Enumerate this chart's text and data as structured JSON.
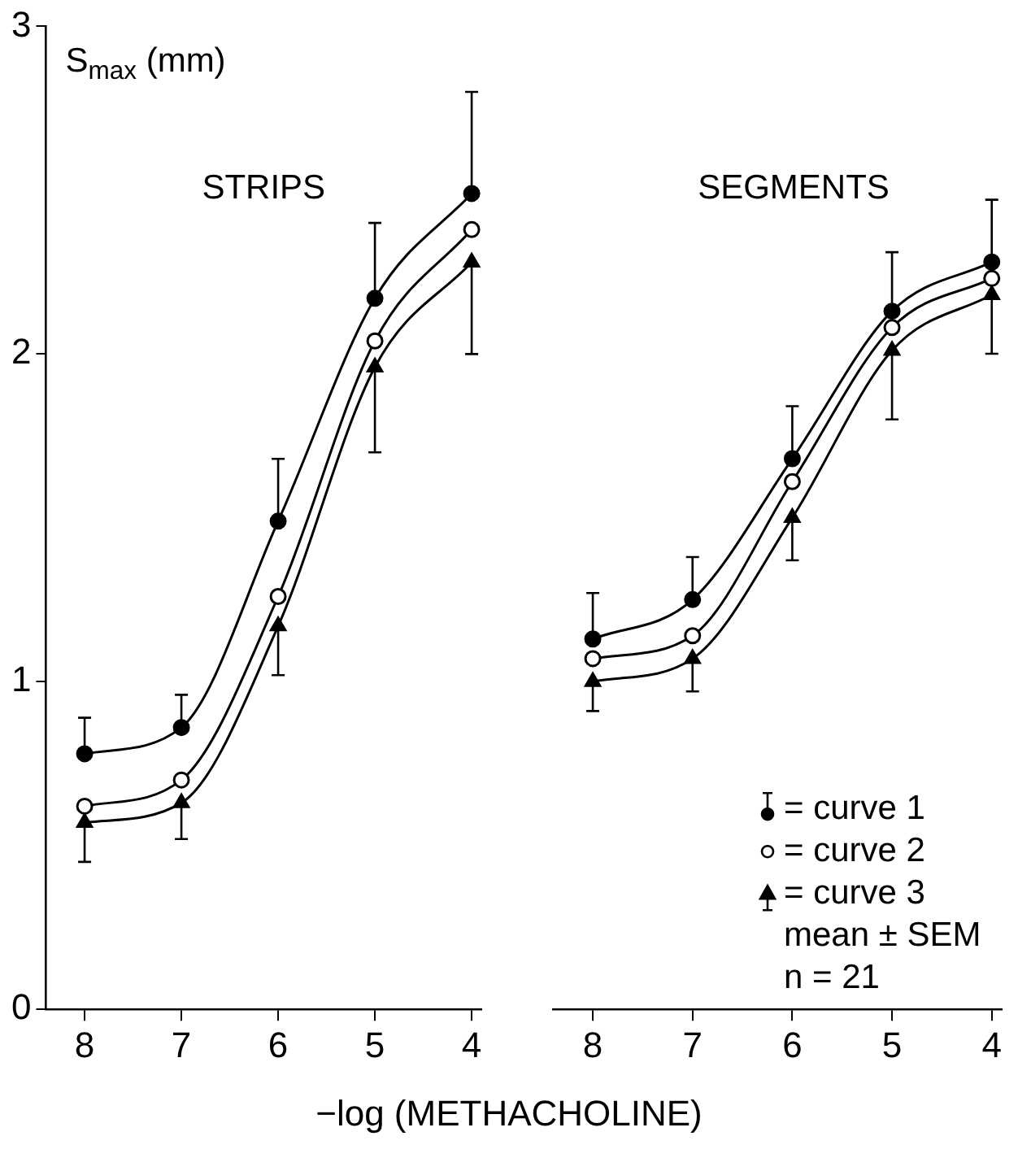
{
  "chart_data": [
    {
      "type": "line",
      "title": "STRIPS",
      "ylabel": "S$_{max}$ (mm)",
      "xlabel": "−log (METHACHOLINE)",
      "xlim": [
        8.4,
        3.9
      ],
      "xticks": [
        8,
        7,
        6,
        5,
        4
      ],
      "ylim": [
        0,
        3
      ],
      "yticks": [
        0,
        1,
        2,
        3
      ],
      "grid": false,
      "line_style": "solid",
      "series": [
        {
          "color": "#000000",
          "marker": "circle",
          "x": [
            8,
            7,
            6,
            5,
            4
          ],
          "values": [
            0.78,
            0.86,
            1.49,
            2.17,
            2.49
          ],
          "errors": [
            [
              0.78,
              0.89
            ],
            [
              0.86,
              0.96
            ],
            [
              1.49,
              1.68
            ],
            [
              2.17,
              2.4
            ],
            [
              2.49,
              2.8
            ]
          ]
        },
        {
          "color": "#000000",
          "marker": "circle",
          "colors": [
            "#ffffff",
            "#ffffff",
            "#ffffff",
            "#ffffff",
            "#ffffff"
          ],
          "x": [
            8,
            7,
            6,
            5,
            4
          ],
          "values": [
            0.62,
            0.7,
            1.26,
            2.04,
            2.38
          ]
        },
        {
          "color": "#000000",
          "marker": "triangle",
          "x": [
            8,
            7,
            6,
            5,
            4
          ],
          "values": [
            0.57,
            0.63,
            1.17,
            1.96,
            2.28
          ],
          "errors": [
            [
              0.45,
              0.57
            ],
            [
              0.52,
              0.63
            ],
            [
              1.02,
              1.17
            ],
            [
              1.7,
              1.96
            ],
            [
              2.0,
              2.28
            ]
          ]
        }
      ]
    },
    {
      "type": "line",
      "title": "SEGMENTS",
      "xlim": [
        8.4,
        3.9
      ],
      "xticks": [
        8,
        7,
        6,
        5,
        4
      ],
      "ylim": [
        0,
        3
      ],
      "tick_labels": "x",
      "grid": false,
      "line_style": "solid",
      "legend": "bottom right",
      "annotations": [
        "mean ± SEM",
        "n = 21"
      ],
      "series": [
        {
          "name": "= curve 1",
          "color": "#000000",
          "marker": "circle",
          "x": [
            8,
            7,
            6,
            5,
            4
          ],
          "values": [
            1.13,
            1.25,
            1.68,
            2.13,
            2.28
          ],
          "errors": [
            [
              1.13,
              1.27
            ],
            [
              1.25,
              1.38
            ],
            [
              1.68,
              1.84
            ],
            [
              2.13,
              2.31
            ],
            [
              2.28,
              2.47
            ]
          ]
        },
        {
          "name": "= curve 2",
          "color": "#000000",
          "marker": "circle",
          "colors": [
            "#ffffff",
            "#ffffff",
            "#ffffff",
            "#ffffff",
            "#ffffff"
          ],
          "x": [
            8,
            7,
            6,
            5,
            4
          ],
          "values": [
            1.07,
            1.14,
            1.61,
            2.08,
            2.23
          ]
        },
        {
          "name": "= curve 3",
          "color": "#000000",
          "marker": "triangle",
          "x": [
            8,
            7,
            6,
            5,
            4
          ],
          "values": [
            1.0,
            1.07,
            1.5,
            2.01,
            2.18
          ],
          "errors": [
            [
              0.91,
              1.0
            ],
            [
              0.97,
              1.07
            ],
            [
              1.37,
              1.5
            ],
            [
              1.8,
              2.01
            ],
            [
              2.0,
              2.18
            ]
          ]
        }
      ]
    }
  ]
}
